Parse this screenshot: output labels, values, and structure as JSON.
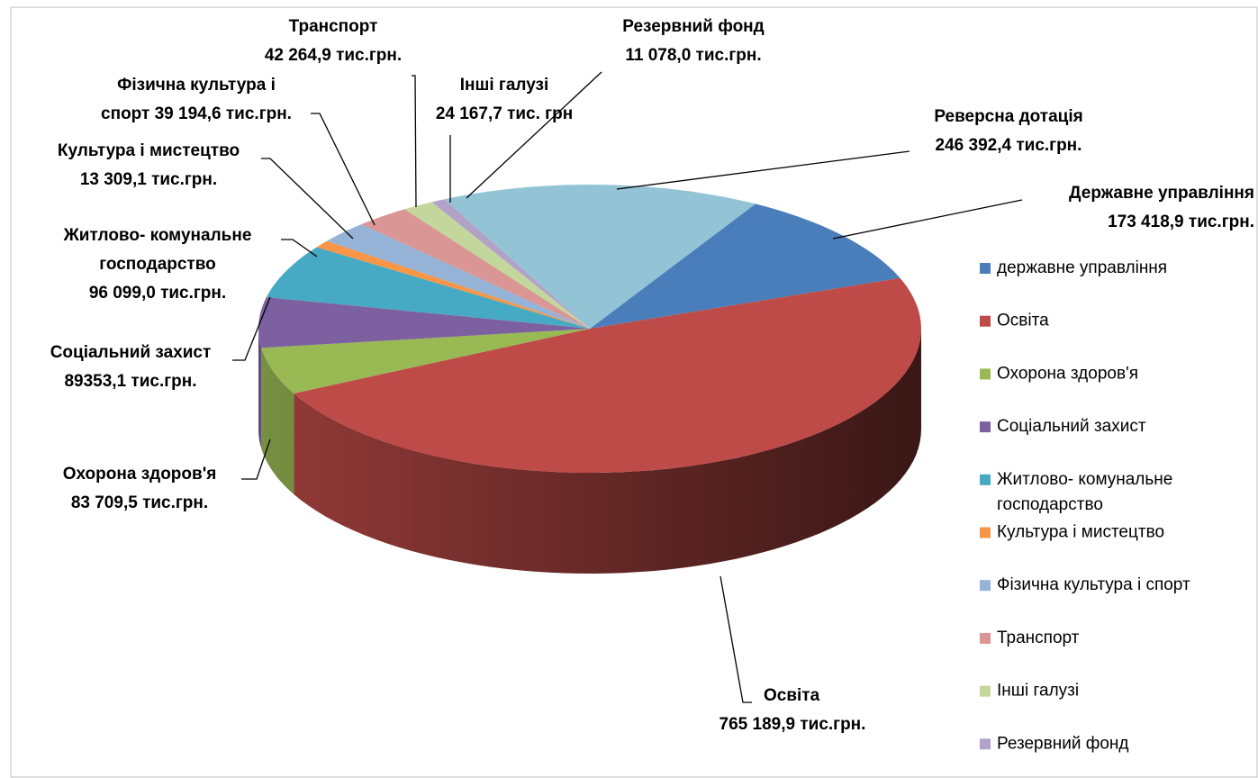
{
  "chart_data": {
    "type": "pie3d",
    "categories": [
      "державне управління",
      "Освіта",
      "Охорона здоров'я",
      "Соціальний захист",
      "Житлово- комунальне господарство",
      "Культура і мистецтво",
      "Фізична культура і спорт",
      "Транспорт",
      "Інші галузі",
      "Резервний фонд",
      null
    ],
    "values": [
      173418.9,
      765189.9,
      83709.5,
      89353.1,
      96099.0,
      13309.1,
      39194.6,
      42264.9,
      24167.7,
      11078.0,
      246392.4
    ],
    "value_labels": [
      [
        "Державне управління",
        "173 418,9 тис.грн."
      ],
      [
        "Освіта",
        "765 189,9 тис.грн."
      ],
      [
        "Охорона здоров'я",
        "83 709,5 тис.грн."
      ],
      [
        "Соціальний захист",
        "89353,1 тис.грн."
      ],
      [
        "Житлово- комунальне",
        "господарство",
        "96 099,0 тис.грн."
      ],
      [
        "Культура і мистецтво",
        "13 309,1 тис.грн."
      ],
      [
        "Фізична культура і",
        "спорт 39 194,6 тис.грн."
      ],
      [
        "Транспорт",
        "42 264,9 тис.грн."
      ],
      [
        "Інші галузі",
        "24 167,7 тис. грн"
      ],
      [
        "Резервний фонд",
        "11 078,0 тис.грн."
      ],
      [
        "Реверсна дотація",
        "246 392,4 тис.грн."
      ]
    ],
    "colors": [
      "#4a7ebb",
      "#be4b48",
      "#98b954",
      "#7d60a0",
      "#46aac5",
      "#f79646",
      "#95b3d7",
      "#d99694",
      "#c3d69b",
      "#b3a2c7",
      "#93c4d6"
    ],
    "legend": "right"
  }
}
